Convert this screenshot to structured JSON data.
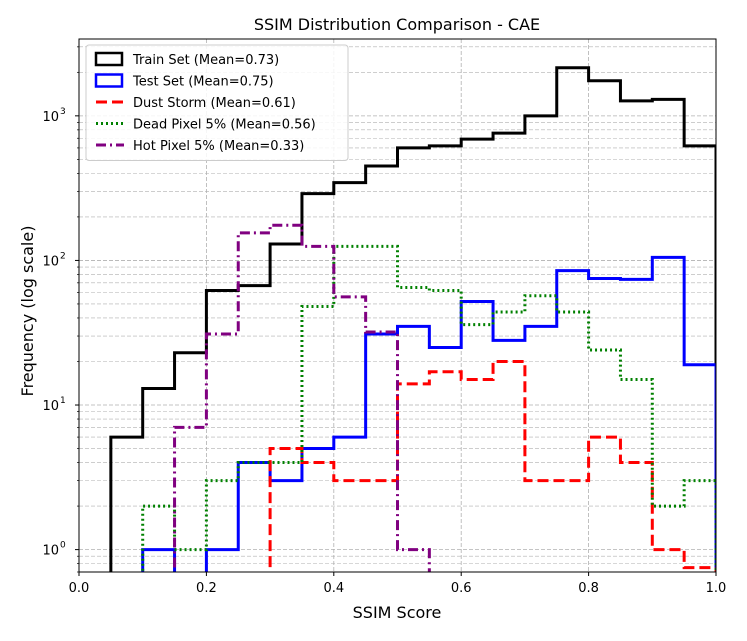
{
  "chart_data": {
    "type": "histogram-step",
    "title": "SSIM Distribution Comparison - CAE",
    "xlabel": "SSIM Score",
    "ylabel": "Frequency (log scale)",
    "xlim": [
      0.0,
      1.0
    ],
    "ylim": [
      0.7,
      3400
    ],
    "yscale": "log",
    "grid": "both, dashed, major and minor",
    "legend_position": "top-left",
    "bin_edges": [
      0.0,
      0.05,
      0.1,
      0.15,
      0.2,
      0.25,
      0.3,
      0.35,
      0.4,
      0.45,
      0.5,
      0.55,
      0.6,
      0.65,
      0.7,
      0.75,
      0.8,
      0.85,
      0.9,
      0.95,
      1.0
    ],
    "x_ticks": [
      {
        "value": 0.0,
        "label": "0.0"
      },
      {
        "value": 0.2,
        "label": "0.2"
      },
      {
        "value": 0.4,
        "label": "0.4"
      },
      {
        "value": 0.6,
        "label": "0.6"
      },
      {
        "value": 0.8,
        "label": "0.8"
      },
      {
        "value": 1.0,
        "label": "1.0"
      }
    ],
    "y_ticks": [
      {
        "value": 1,
        "base": "10",
        "exp": "0"
      },
      {
        "value": 10,
        "base": "10",
        "exp": "1"
      },
      {
        "value": 100,
        "base": "10",
        "exp": "2"
      },
      {
        "value": 1000,
        "base": "10",
        "exp": "3"
      }
    ],
    "series": [
      {
        "name": "Train Set (Mean=0.73)",
        "color": "#000000",
        "dash": "solid",
        "counts": [
          0,
          6,
          13,
          23,
          62,
          67,
          130,
          290,
          345,
          450,
          600,
          620,
          690,
          760,
          1000,
          2150,
          1750,
          1270,
          1300,
          620
        ]
      },
      {
        "name": "Test Set (Mean=0.75)",
        "color": "#0000ff",
        "dash": "solid",
        "counts": [
          0,
          0,
          1,
          0,
          1,
          4,
          3,
          5,
          6,
          31,
          35,
          25,
          52,
          28,
          35,
          85,
          75,
          74,
          105,
          19
        ]
      },
      {
        "name": "Dust Storm (Mean=0.61)",
        "color": "#ff0000",
        "dash": "dashed",
        "counts": [
          0,
          0,
          0,
          0,
          0,
          0,
          5,
          4,
          3,
          3,
          14,
          17,
          15,
          20,
          3,
          3,
          6,
          4,
          1,
          0.75
        ]
      },
      {
        "name": "Dead Pixel 5% (Mean=0.56)",
        "color": "#008000",
        "dash": "dotted",
        "counts": [
          0,
          0,
          2,
          1,
          3,
          4,
          4,
          48,
          125,
          125,
          65,
          62,
          36,
          44,
          57,
          44,
          24,
          15,
          2,
          3
        ]
      },
      {
        "name": "Hot Pixel 5% (Mean=0.33)",
        "color": "#800080",
        "dash": "dashdot",
        "counts": [
          0,
          0,
          0,
          7,
          31,
          155,
          175,
          125,
          56,
          32,
          1,
          0,
          0,
          0,
          0,
          0,
          0,
          0,
          0,
          0
        ]
      }
    ]
  }
}
